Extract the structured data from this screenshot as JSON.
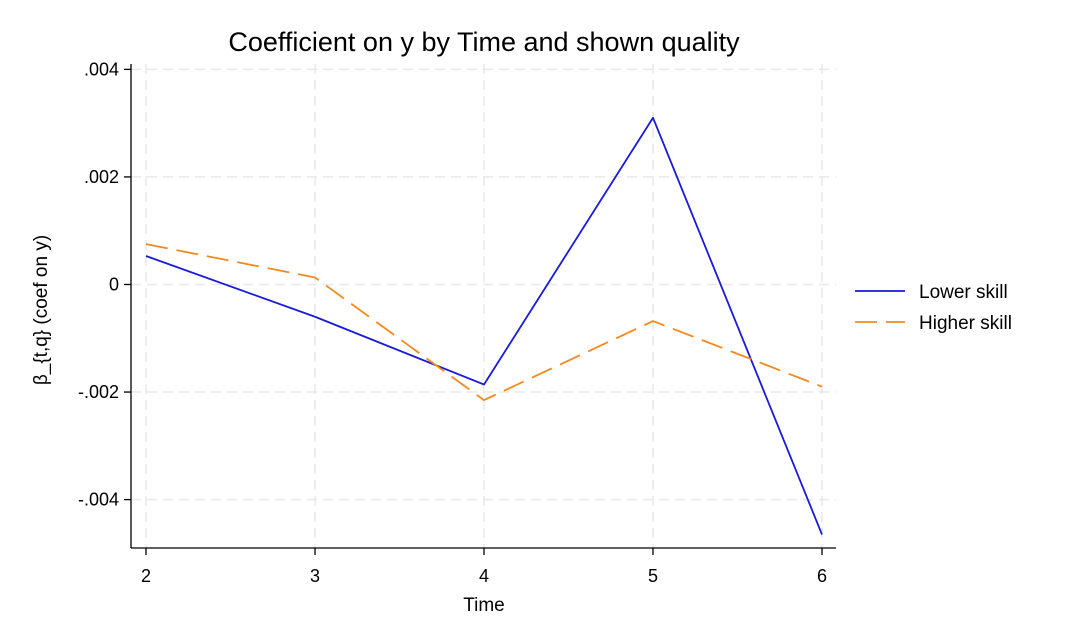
{
  "chart_data": {
    "type": "line",
    "title": "Coefficient on y by Time and shown quality",
    "xlabel": "Time",
    "ylabel": "β_{t,q} (coef on y)",
    "x": [
      2,
      3,
      4,
      5,
      6
    ],
    "xlim": [
      2,
      6
    ],
    "ylim": [
      -0.0049,
      0.0041
    ],
    "x_ticks": [
      {
        "value": 2,
        "label": "2"
      },
      {
        "value": 3,
        "label": "3"
      },
      {
        "value": 4,
        "label": "4"
      },
      {
        "value": 5,
        "label": "5"
      },
      {
        "value": 6,
        "label": "6"
      }
    ],
    "y_ticks": [
      {
        "value": 0.004,
        "label": ".004"
      },
      {
        "value": 0.002,
        "label": ".002"
      },
      {
        "value": 0,
        "label": "0"
      },
      {
        "value": -0.002,
        "label": "-.002"
      },
      {
        "value": -0.004,
        "label": "-.004"
      }
    ],
    "grid": true,
    "legend_position": "right",
    "series": [
      {
        "name": "Lower skill",
        "color": "#1a1adb",
        "dash": "solid",
        "values": [
          0.00053,
          -0.0006,
          -0.00186,
          0.0031,
          -0.00465
        ]
      },
      {
        "name": "Higher skill",
        "color": "#f5891f",
        "dash": "dashed",
        "values": [
          0.00075,
          0.00013,
          -0.00215,
          -0.00068,
          -0.0019
        ]
      }
    ]
  }
}
